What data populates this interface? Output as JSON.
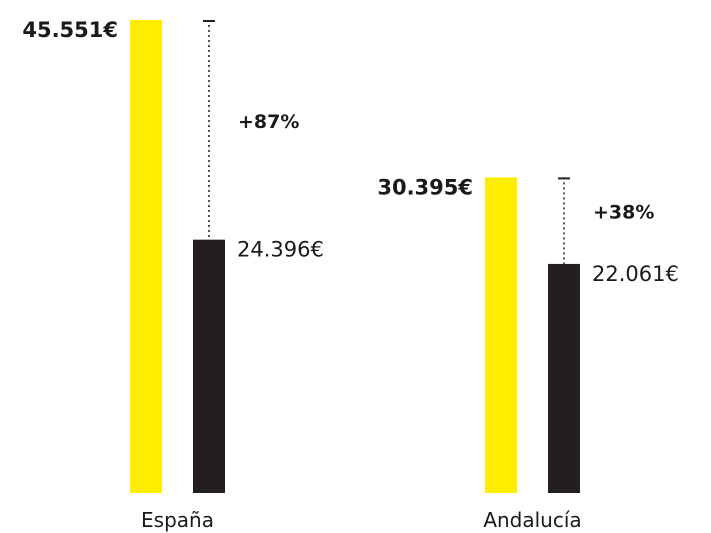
{
  "chart_data": {
    "type": "bar",
    "categories": [
      "España",
      "Andalucía"
    ],
    "series": [
      {
        "values": [
          45551,
          30395
        ],
        "labels": [
          "45.551€",
          "30.395€"
        ],
        "color": "#FFED00"
      },
      {
        "values": [
          24396,
          22061
        ],
        "labels": [
          "24.396€",
          "22.061€"
        ],
        "color": "#231F20"
      }
    ],
    "differences": [
      "+87%",
      "+38%"
    ],
    "ylim": [
      0,
      45551
    ],
    "grid": false,
    "legend": "none"
  }
}
